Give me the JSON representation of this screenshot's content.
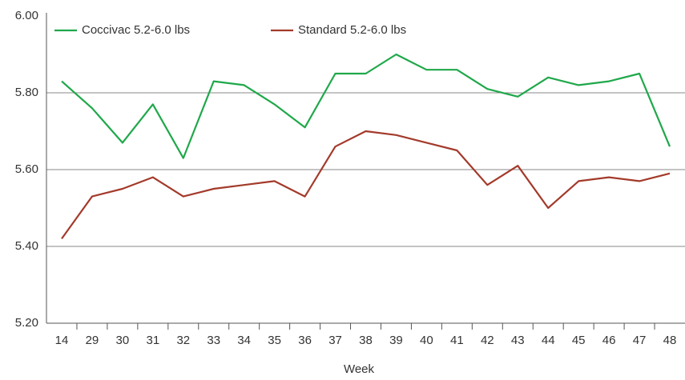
{
  "chart_data": {
    "type": "line",
    "x_label": "Week",
    "categories": [
      "14",
      "29",
      "30",
      "31",
      "32",
      "33",
      "34",
      "35",
      "36",
      "37",
      "38",
      "39",
      "40",
      "41",
      "42",
      "43",
      "44",
      "45",
      "46",
      "47",
      "48"
    ],
    "series": [
      {
        "name": "Coccivac 5.2-6.0 lbs",
        "color": "#1fa84a",
        "values": [
          5.83,
          5.76,
          5.67,
          5.77,
          5.63,
          5.83,
          5.82,
          5.77,
          5.71,
          5.85,
          5.85,
          5.9,
          5.86,
          5.86,
          5.81,
          5.79,
          5.84,
          5.82,
          5.83,
          5.85,
          5.66
        ]
      },
      {
        "name": "Standard 5.2-6.0 lbs",
        "color": "#a33a2a",
        "values": [
          5.42,
          5.53,
          5.55,
          5.58,
          5.53,
          5.55,
          5.56,
          5.57,
          5.53,
          5.66,
          5.7,
          5.69,
          5.67,
          5.65,
          5.56,
          5.61,
          5.5,
          5.57,
          5.58,
          5.57,
          5.59
        ]
      }
    ],
    "ylim": [
      5.2,
      6.0
    ],
    "yticks": [
      {
        "value": 5.2,
        "label": "5.20"
      },
      {
        "value": 5.4,
        "label": "5.40"
      },
      {
        "value": 5.6,
        "label": "5.60"
      },
      {
        "value": 5.8,
        "label": "5.80"
      },
      {
        "value": 6.0,
        "label": "6.00"
      }
    ],
    "grid": true,
    "legend": "top"
  }
}
